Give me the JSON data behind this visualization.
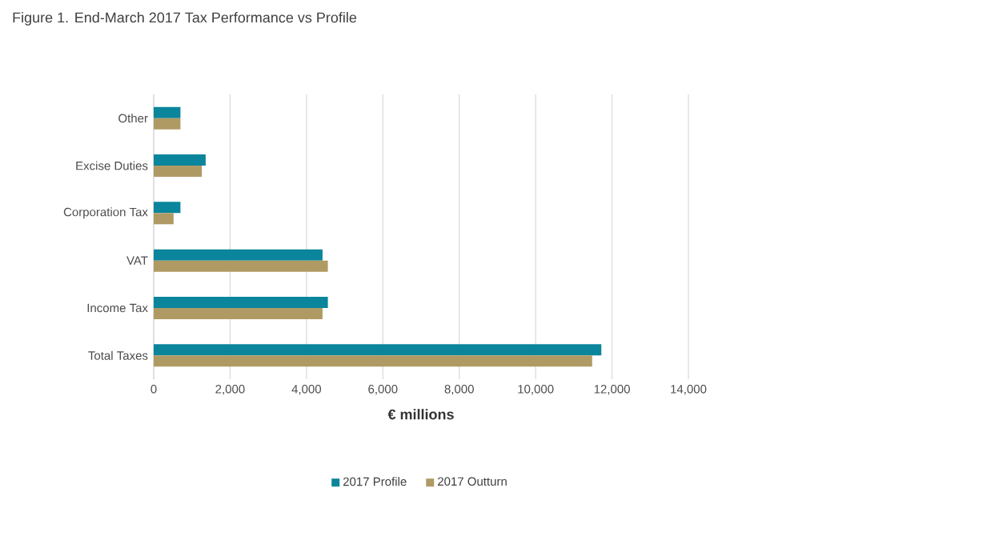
{
  "chart_data": {
    "type": "bar",
    "orientation": "horizontal",
    "title": "Figure 1. End-March 2017 Tax Performance vs Profile",
    "xlabel": "€ millions",
    "categories": [
      "Other",
      "Excise Duties",
      "Corporation Tax",
      "VAT",
      "Income Tax",
      "Total Taxes"
    ],
    "series": [
      {
        "name": "2017 Profile",
        "color": "#0a859c",
        "values": [
          700,
          1360,
          700,
          4420,
          4560,
          11720
        ]
      },
      {
        "name": "2017 Outturn",
        "color": "#b09a64",
        "values": [
          700,
          1260,
          520,
          4560,
          4420,
          11480
        ]
      }
    ],
    "xlim": [
      0,
      14000
    ],
    "xticks": [
      0,
      {
        "value": 2000,
        "label": "2,000"
      },
      {
        "value": 4000,
        "label": "4,000"
      },
      {
        "value": 6000,
        "label": "6,000"
      },
      {
        "value": 8000,
        "label": "8,000"
      },
      {
        "value": 10000,
        "label": "10,000"
      },
      {
        "value": 12000,
        "label": "12,000"
      },
      {
        "value": 14000,
        "label": "14,000"
      }
    ],
    "grid": "x",
    "legend": "bottom"
  }
}
